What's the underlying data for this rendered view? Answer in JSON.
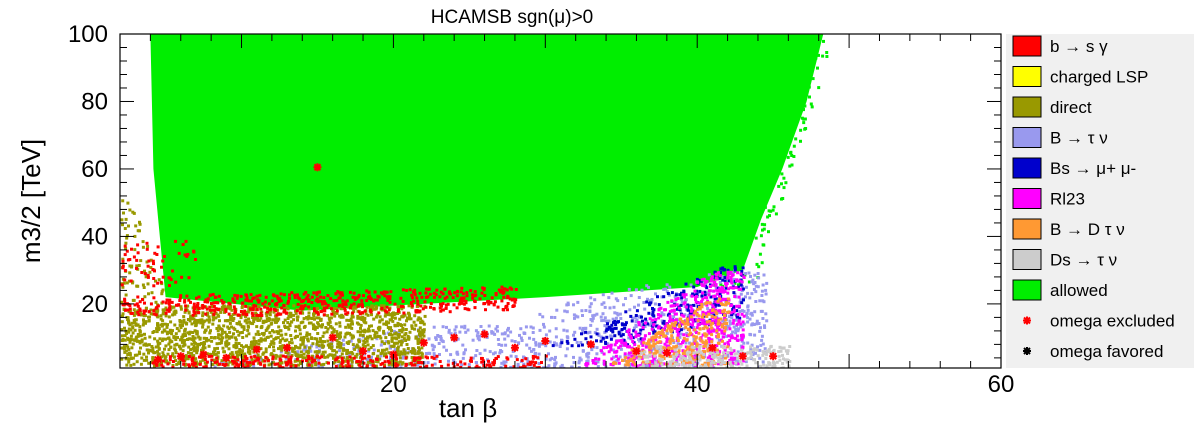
{
  "chart_data": {
    "type": "scatter",
    "title": "HCAMSB    sgn(μ)>0",
    "xlabel": "tan β",
    "ylabel": "m3/2 [TeV]",
    "xlim": [
      2,
      60
    ],
    "ylim": [
      1,
      100
    ],
    "x_ticks": [
      20,
      40,
      60
    ],
    "x_tick_labels": [
      "20",
      "40",
      "60"
    ],
    "y_ticks": [
      20,
      40,
      60,
      80,
      100
    ],
    "y_tick_labels": [
      "20",
      "40",
      "60",
      "80",
      "100"
    ],
    "grid": false,
    "legend_position": "right",
    "series": [
      {
        "name": "b → s γ",
        "color": "#ff0000",
        "marker": "box"
      },
      {
        "name": "charged LSP",
        "color": "#ffff00",
        "marker": "box"
      },
      {
        "name": "direct",
        "color": "#999900",
        "marker": "box"
      },
      {
        "name": "B → τ ν",
        "color": "#9999ee",
        "marker": "box"
      },
      {
        "name": "Bs → μ+ μ-",
        "color": "#0000cc",
        "marker": "box"
      },
      {
        "name": "Rl23",
        "color": "#ff00ff",
        "marker": "box"
      },
      {
        "name": "B → D τ ν",
        "color": "#ff9933",
        "marker": "box"
      },
      {
        "name": "Ds → τ ν",
        "color": "#cccccc",
        "marker": "box"
      },
      {
        "name": "allowed",
        "color": "#00ee00",
        "marker": "box"
      },
      {
        "name": "omega excluded",
        "color": "#ff0000",
        "marker": "star"
      },
      {
        "name": "omega favored",
        "color": "#000000",
        "marker": "star"
      }
    ],
    "regions": {
      "allowed": {
        "upper_edge": [
          [
            4,
            100
          ],
          [
            47,
            100
          ],
          [
            48.5,
            100
          ],
          [
            47,
            80
          ],
          [
            45.5,
            60
          ],
          [
            44,
            40
          ],
          [
            42.5,
            25
          ]
        ],
        "lower_edge_y": 18
      },
      "direct_band": {
        "x": [
          2,
          22
        ],
        "y": [
          2,
          20
        ]
      },
      "b_to_s_gamma_band": {
        "x": [
          2,
          28
        ],
        "y": [
          17,
          26
        ]
      },
      "B_to_tau_nu": {
        "x": [
          8,
          45
        ],
        "y": [
          1,
          45
        ]
      },
      "Bs_mu_mu": {
        "x": [
          28,
          43
        ],
        "y": [
          8,
          32
        ]
      },
      "Rl23": {
        "x": [
          32,
          43
        ],
        "y": [
          2,
          30
        ]
      },
      "B_D_tau_nu": {
        "x": [
          34,
          42
        ],
        "y": [
          2,
          22
        ]
      },
      "Ds_tau_nu": {
        "x": [
          36,
          46
        ],
        "y": [
          1,
          8
        ]
      }
    },
    "omega_excluded_points": [
      [
        4.5,
        3.5
      ],
      [
        6,
        4.5
      ],
      [
        7.5,
        5
      ],
      [
        9,
        4
      ],
      [
        11,
        6.5
      ],
      [
        13,
        7
      ],
      [
        15,
        60.5
      ],
      [
        16,
        10
      ],
      [
        18,
        6
      ],
      [
        20,
        5
      ],
      [
        22,
        8.5
      ],
      [
        24,
        10
      ],
      [
        26,
        11
      ],
      [
        28,
        7
      ],
      [
        30,
        9
      ],
      [
        33,
        8
      ],
      [
        36,
        6
      ],
      [
        38,
        5.5
      ],
      [
        41,
        7
      ],
      [
        43,
        4.5
      ],
      [
        45,
        4.5
      ]
    ],
    "omega_favored_points": []
  }
}
